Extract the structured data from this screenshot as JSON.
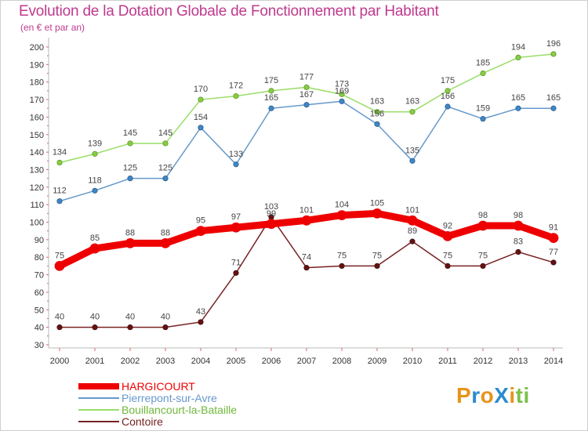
{
  "title": "Evolution de la Dotation Globale de Fonctionnement par Habitant",
  "subtitle": "(en € et par an)",
  "brand": "ProXiti",
  "chart_data": {
    "type": "line",
    "title": "Evolution de la Dotation Globale de Fonctionnement par Habitant",
    "ylabel": "(en € et par an)",
    "xlabel": "",
    "x": [
      "2000",
      "2001",
      "2002",
      "2003",
      "2004",
      "2005",
      "2006",
      "2007",
      "2008",
      "2009",
      "2010",
      "2011",
      "2012",
      "2013",
      "2014"
    ],
    "ylim": [
      30,
      200
    ],
    "yticks": [
      30,
      40,
      50,
      60,
      70,
      80,
      90,
      100,
      110,
      120,
      130,
      140,
      150,
      160,
      170,
      180,
      190,
      200
    ],
    "grid": false,
    "legend_position": "bottom-left",
    "series": [
      {
        "name": "HARGICOURT",
        "color": "#ee0000",
        "values": [
          75,
          85,
          88,
          88,
          95,
          97,
          99,
          101,
          104,
          105,
          101,
          92,
          98,
          98,
          91
        ],
        "labels": [
          "75",
          "85",
          "88",
          "88",
          "95",
          "97",
          "99",
          "101",
          "104",
          "105",
          "101",
          "92",
          "98",
          "98",
          "91"
        ]
      },
      {
        "name": "Pierrepont-sur-Avre",
        "color": "#6699cc",
        "values": [
          112,
          118,
          125,
          125,
          154,
          133,
          165,
          167,
          169,
          156,
          135,
          166,
          159,
          165,
          165
        ],
        "labels": [
          "112",
          "118",
          "125",
          "125",
          "154",
          "133",
          "165",
          "167",
          "169",
          "156",
          "135",
          "166",
          "159",
          "165",
          "165"
        ]
      },
      {
        "name": "Bouillancourt-la-Bataille",
        "color": "#99dd66",
        "values": [
          134,
          139,
          145,
          145,
          170,
          172,
          175,
          177,
          173,
          163,
          163,
          175,
          185,
          194,
          196
        ],
        "labels": [
          "134",
          "139",
          "145",
          "145",
          "170",
          "172",
          "175",
          "177",
          "173",
          "163",
          "163",
          "175",
          "185",
          "194",
          "196"
        ]
      },
      {
        "name": "Contoire",
        "color": "#772222",
        "values": [
          40,
          40,
          40,
          40,
          43,
          71,
          103,
          74,
          75,
          75,
          89,
          75,
          75,
          83,
          77
        ],
        "labels": [
          "40",
          "40",
          "40",
          "40",
          "43",
          "71",
          "103",
          "74",
          "75",
          "75",
          "89",
          "75",
          "75",
          "83",
          "77"
        ]
      }
    ]
  }
}
